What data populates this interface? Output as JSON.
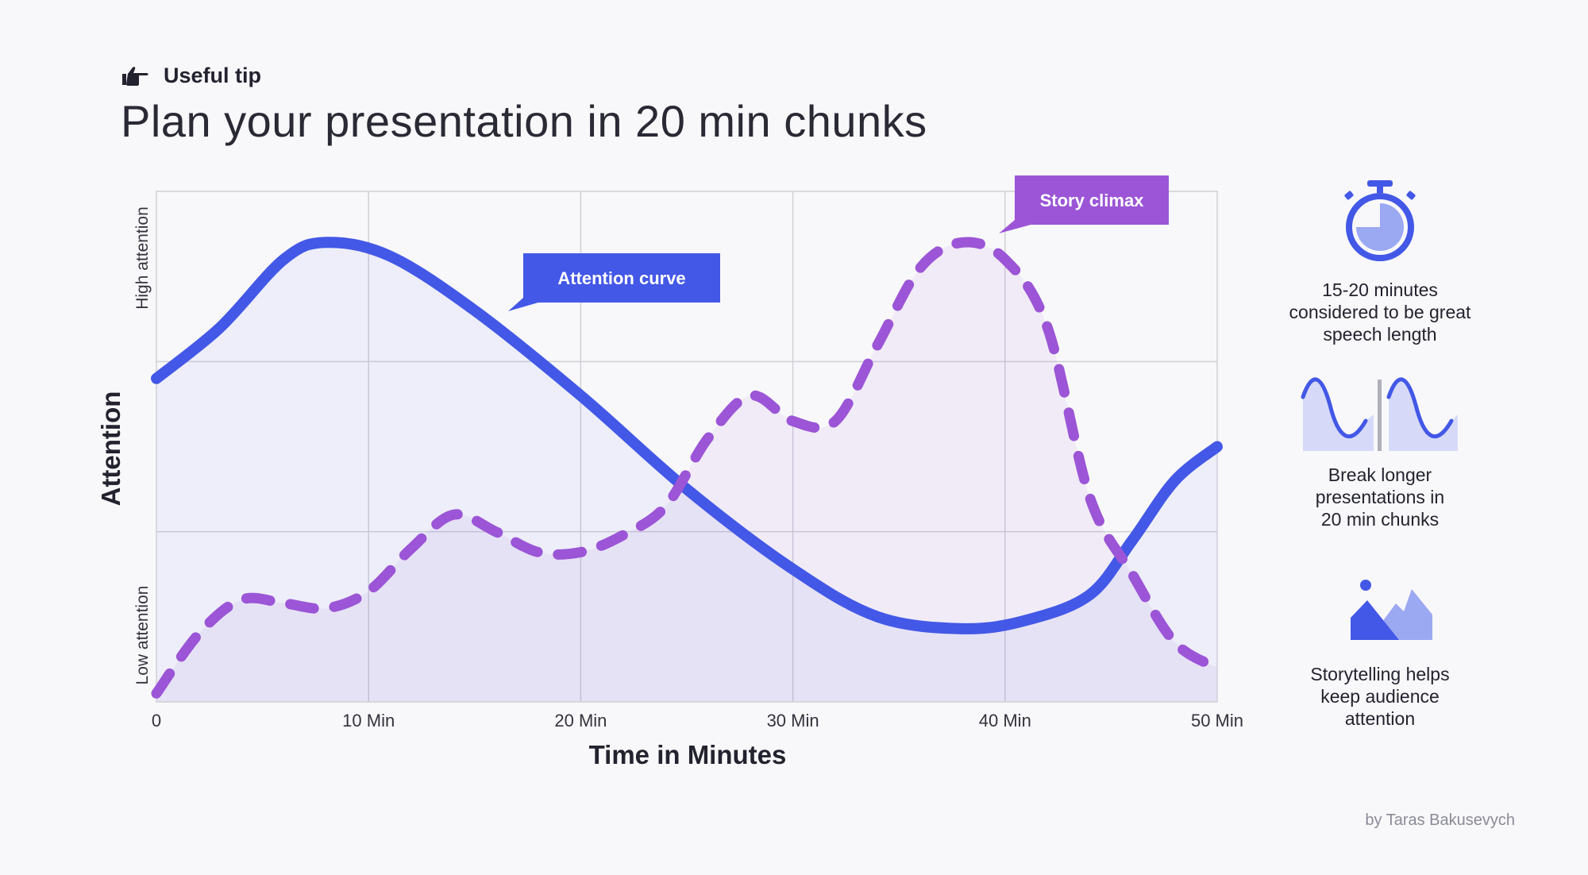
{
  "header": {
    "tip_label": "Useful tip",
    "title": "Plan your presentation in 20 min chunks"
  },
  "chart_data": {
    "type": "line",
    "xlabel": "Time in Minutes",
    "ylabel": "Attention",
    "y_top_label": "High attention",
    "y_bottom_label": "Low attention",
    "x_ticks": [
      {
        "value": 0,
        "label": "0"
      },
      {
        "value": 10,
        "label": "10 Min"
      },
      {
        "value": 20,
        "label": "20 Min"
      },
      {
        "value": 30,
        "label": "30 Min"
      },
      {
        "value": 40,
        "label": "40 Min"
      },
      {
        "value": 50,
        "label": "50 Min"
      }
    ],
    "xlim": [
      0,
      50
    ],
    "ylim": [
      0,
      3
    ],
    "grid": true,
    "series": [
      {
        "name": "Attention curve",
        "style": "solid",
        "color": "#4358e6",
        "x": [
          0,
          3,
          6,
          8,
          11,
          15,
          20,
          25,
          30,
          34,
          38,
          41,
          44,
          46,
          48,
          50
        ],
        "y": [
          1.9,
          2.2,
          2.6,
          2.7,
          2.62,
          2.3,
          1.8,
          1.25,
          0.78,
          0.5,
          0.43,
          0.48,
          0.63,
          0.95,
          1.3,
          1.5
        ]
      },
      {
        "name": "Story climax",
        "style": "dashed",
        "color": "#9b55d6",
        "x": [
          0,
          2,
          4,
          6,
          8,
          10,
          12,
          14,
          16,
          18,
          20,
          22,
          24,
          26,
          28,
          30,
          32,
          34,
          36,
          38,
          40,
          42,
          44,
          46,
          48,
          50
        ],
        "y": [
          0.05,
          0.4,
          0.6,
          0.58,
          0.55,
          0.65,
          0.9,
          1.1,
          1.0,
          0.88,
          0.88,
          0.98,
          1.15,
          1.55,
          1.8,
          1.65,
          1.65,
          2.1,
          2.55,
          2.7,
          2.6,
          2.2,
          1.2,
          0.75,
          0.35,
          0.2
        ]
      }
    ],
    "annotations": [
      {
        "text": "Attention curve",
        "color": "#4358e6"
      },
      {
        "text": "Story climax",
        "color": "#9b55d6"
      }
    ]
  },
  "side_items": [
    {
      "icon": "stopwatch-icon",
      "text": "15-20 minutes\nconsidered to be great\nspeech length"
    },
    {
      "icon": "split-wave-icon",
      "text": "Break longer\npresentations in\n20 min chunks"
    },
    {
      "icon": "mountain-icon",
      "text": "Storytelling helps\nkeep audience\nattention"
    }
  ],
  "credit": "by Taras Bakusevych",
  "colors": {
    "blue": "#4358e6",
    "purple": "#9b55d6",
    "grid": "#cfcfd6",
    "background": "#f8f8fa"
  }
}
